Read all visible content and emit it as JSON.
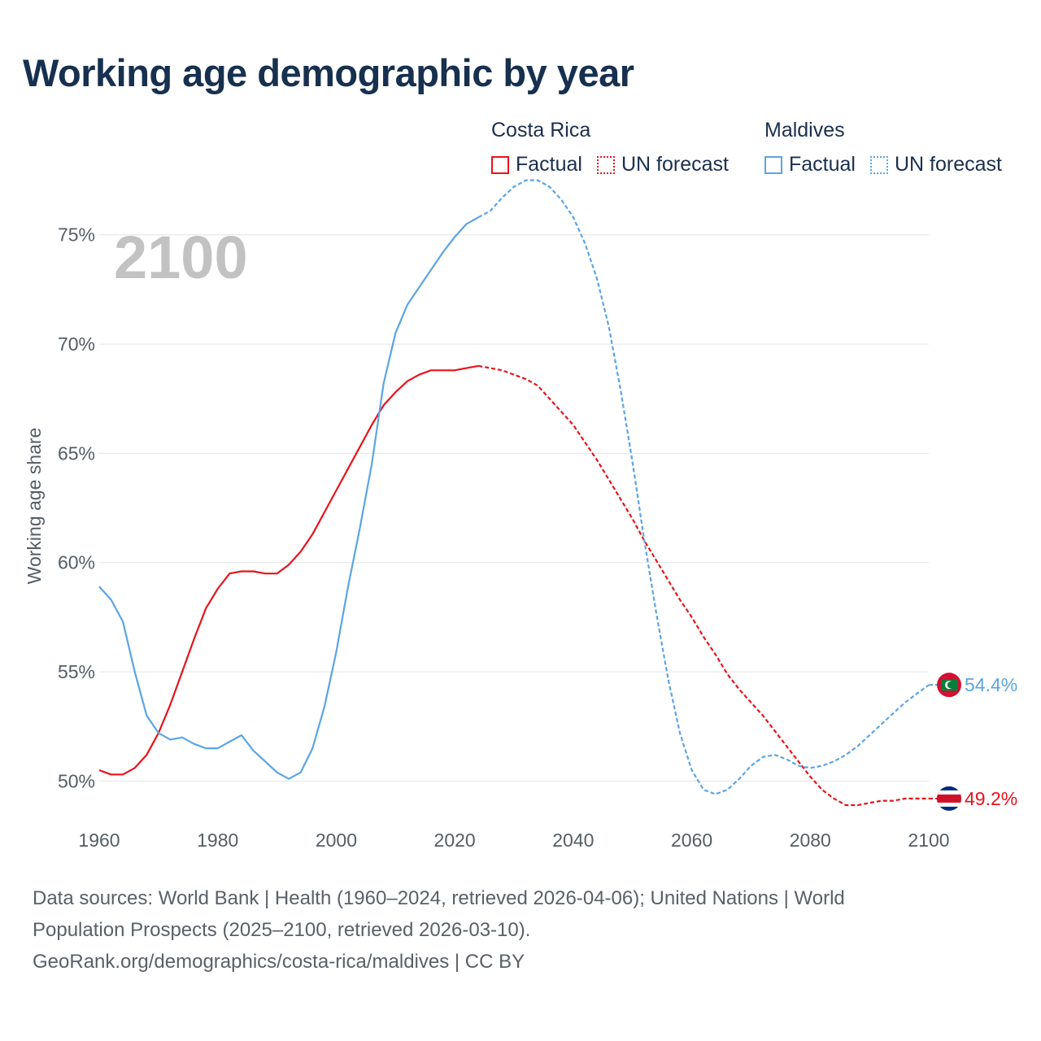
{
  "title": "Working age demographic by year",
  "legend": {
    "groups": [
      {
        "name": "Costa Rica",
        "color": "#e8131b",
        "factual_label": "Factual",
        "forecast_label": "UN forecast"
      },
      {
        "name": "Maldives",
        "color": "#5ba4e5",
        "factual_label": "Factual",
        "forecast_label": "UN forecast"
      }
    ]
  },
  "footer": {
    "line1": "Data sources: World Bank | Health (1960–2024, retrieved 2026-04-06); United Nations | World",
    "line2": "Population Prospects (2025–2100, retrieved 2026-03-10).",
    "line3": "GeoRank.org/demographics/costa-rica/maldives | CC BY"
  },
  "chart_data": {
    "type": "line",
    "year_label": "2100",
    "ylabel": "Working age share",
    "xlim": [
      1960,
      2100
    ],
    "ylim": [
      47,
      77
    ],
    "x_ticks": [
      1960,
      1980,
      2000,
      2020,
      2040,
      2060,
      2080,
      2100
    ],
    "x_tick_labels": [
      "1960",
      "1980",
      "2000",
      "2020",
      "2040",
      "2060",
      "2080",
      "2100"
    ],
    "y_ticks": [
      50,
      55,
      60,
      65,
      70,
      75
    ],
    "y_tick_labels": [
      "50%",
      "55%",
      "60%",
      "65%",
      "70%",
      "75%"
    ],
    "factual_end_year": 2024,
    "series": [
      {
        "name": "Costa Rica",
        "color": "#e8131b",
        "end_label": "49.2%",
        "flag": "costa-rica-flag-icon",
        "points": [
          [
            1960,
            50.5
          ],
          [
            1962,
            50.3
          ],
          [
            1964,
            50.3
          ],
          [
            1966,
            50.6
          ],
          [
            1968,
            51.2
          ],
          [
            1970,
            52.2
          ],
          [
            1972,
            53.5
          ],
          [
            1974,
            55.0
          ],
          [
            1976,
            56.5
          ],
          [
            1978,
            57.9
          ],
          [
            1980,
            58.8
          ],
          [
            1982,
            59.5
          ],
          [
            1984,
            59.6
          ],
          [
            1986,
            59.6
          ],
          [
            1988,
            59.5
          ],
          [
            1990,
            59.5
          ],
          [
            1992,
            59.9
          ],
          [
            1994,
            60.5
          ],
          [
            1996,
            61.3
          ],
          [
            1998,
            62.3
          ],
          [
            2000,
            63.3
          ],
          [
            2002,
            64.3
          ],
          [
            2004,
            65.3
          ],
          [
            2006,
            66.3
          ],
          [
            2008,
            67.2
          ],
          [
            2010,
            67.8
          ],
          [
            2012,
            68.3
          ],
          [
            2014,
            68.6
          ],
          [
            2016,
            68.8
          ],
          [
            2018,
            68.8
          ],
          [
            2020,
            68.8
          ],
          [
            2022,
            68.9
          ],
          [
            2024,
            69.0
          ],
          [
            2026,
            68.9
          ],
          [
            2028,
            68.8
          ],
          [
            2030,
            68.6
          ],
          [
            2032,
            68.4
          ],
          [
            2034,
            68.1
          ],
          [
            2036,
            67.5
          ],
          [
            2038,
            66.9
          ],
          [
            2040,
            66.3
          ],
          [
            2042,
            65.5
          ],
          [
            2044,
            64.7
          ],
          [
            2046,
            63.8
          ],
          [
            2048,
            62.9
          ],
          [
            2050,
            62.0
          ],
          [
            2052,
            61.0
          ],
          [
            2054,
            60.1
          ],
          [
            2056,
            59.2
          ],
          [
            2058,
            58.3
          ],
          [
            2060,
            57.5
          ],
          [
            2062,
            56.6
          ],
          [
            2064,
            55.8
          ],
          [
            2066,
            54.9
          ],
          [
            2068,
            54.2
          ],
          [
            2070,
            53.6
          ],
          [
            2072,
            53.0
          ],
          [
            2074,
            52.3
          ],
          [
            2076,
            51.6
          ],
          [
            2078,
            50.9
          ],
          [
            2080,
            50.2
          ],
          [
            2082,
            49.6
          ],
          [
            2084,
            49.2
          ],
          [
            2086,
            48.9
          ],
          [
            2088,
            48.9
          ],
          [
            2090,
            49.0
          ],
          [
            2092,
            49.1
          ],
          [
            2094,
            49.1
          ],
          [
            2096,
            49.2
          ],
          [
            2098,
            49.2
          ],
          [
            2100,
            49.2
          ]
        ]
      },
      {
        "name": "Maldives",
        "color": "#5ba4e5",
        "end_label": "54.4%",
        "flag": "maldives-flag-icon",
        "points": [
          [
            1960,
            58.9
          ],
          [
            1962,
            58.3
          ],
          [
            1964,
            57.3
          ],
          [
            1966,
            55.0
          ],
          [
            1968,
            53.0
          ],
          [
            1970,
            52.2
          ],
          [
            1972,
            51.9
          ],
          [
            1974,
            52.0
          ],
          [
            1976,
            51.7
          ],
          [
            1978,
            51.5
          ],
          [
            1980,
            51.5
          ],
          [
            1982,
            51.8
          ],
          [
            1984,
            52.1
          ],
          [
            1986,
            51.4
          ],
          [
            1988,
            50.9
          ],
          [
            1990,
            50.4
          ],
          [
            1992,
            50.1
          ],
          [
            1994,
            50.4
          ],
          [
            1996,
            51.5
          ],
          [
            1998,
            53.4
          ],
          [
            2000,
            55.9
          ],
          [
            2002,
            58.9
          ],
          [
            2004,
            61.6
          ],
          [
            2006,
            64.5
          ],
          [
            2008,
            68.2
          ],
          [
            2010,
            70.5
          ],
          [
            2012,
            71.8
          ],
          [
            2014,
            72.6
          ],
          [
            2016,
            73.4
          ],
          [
            2018,
            74.2
          ],
          [
            2020,
            74.9
          ],
          [
            2022,
            75.5
          ],
          [
            2024,
            75.8
          ],
          [
            2026,
            76.1
          ],
          [
            2028,
            76.7
          ],
          [
            2030,
            77.2
          ],
          [
            2032,
            77.5
          ],
          [
            2034,
            77.5
          ],
          [
            2036,
            77.2
          ],
          [
            2038,
            76.6
          ],
          [
            2040,
            75.8
          ],
          [
            2042,
            74.6
          ],
          [
            2044,
            73.0
          ],
          [
            2046,
            70.8
          ],
          [
            2048,
            67.9
          ],
          [
            2050,
            64.6
          ],
          [
            2052,
            61.0
          ],
          [
            2054,
            57.7
          ],
          [
            2056,
            54.7
          ],
          [
            2058,
            52.2
          ],
          [
            2060,
            50.5
          ],
          [
            2062,
            49.6
          ],
          [
            2064,
            49.4
          ],
          [
            2066,
            49.6
          ],
          [
            2068,
            50.1
          ],
          [
            2070,
            50.7
          ],
          [
            2072,
            51.1
          ],
          [
            2074,
            51.2
          ],
          [
            2076,
            51.0
          ],
          [
            2078,
            50.7
          ],
          [
            2080,
            50.6
          ],
          [
            2082,
            50.7
          ],
          [
            2084,
            50.9
          ],
          [
            2086,
            51.2
          ],
          [
            2088,
            51.6
          ],
          [
            2090,
            52.1
          ],
          [
            2092,
            52.6
          ],
          [
            2094,
            53.1
          ],
          [
            2096,
            53.6
          ],
          [
            2098,
            54.0
          ],
          [
            2100,
            54.4
          ]
        ]
      }
    ]
  }
}
